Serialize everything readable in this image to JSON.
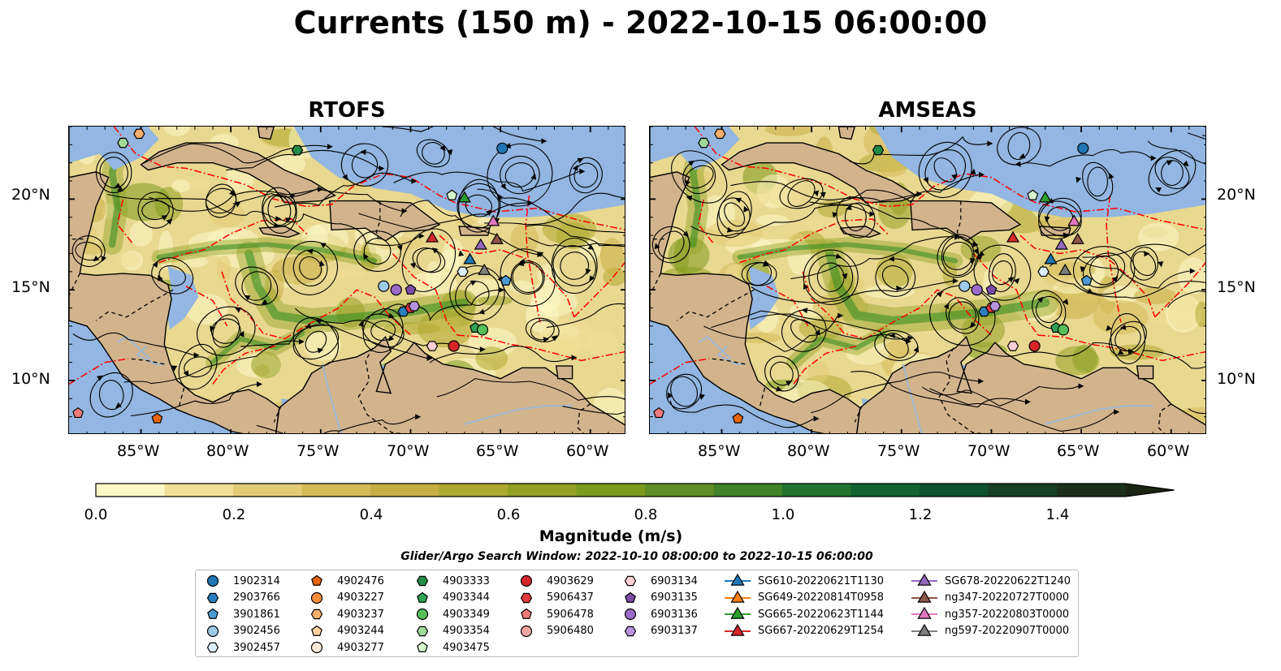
{
  "title": "Currents (150 m) - 2022-10-15 06:00:00",
  "panels": [
    {
      "title": "RTOFS"
    },
    {
      "title": "AMSEAS"
    }
  ],
  "axes": {
    "lon_ticks": [
      "85°W",
      "80°W",
      "75°W",
      "70°W",
      "65°W",
      "60°W"
    ],
    "lat_ticks": [
      "20°N",
      "15°N",
      "10°N"
    ]
  },
  "colorbar": {
    "label": "Magnitude (m/s)",
    "ticks": [
      "0.0",
      "0.2",
      "0.4",
      "0.6",
      "0.8",
      "1.0",
      "1.2",
      "1.4"
    ],
    "range": [
      0,
      1.5
    ],
    "extend": "max",
    "colors": [
      "#fdf8c6",
      "#f0df96",
      "#e2cc75",
      "#d4bb58",
      "#c6ae43",
      "#aea930",
      "#93a125",
      "#7b9a1e",
      "#5f8f24",
      "#3f8228",
      "#22732e",
      "#10632e",
      "#0e5130",
      "#173f24",
      "#1a3019",
      "#1c2414"
    ]
  },
  "search_window": "Glider/Argo Search Window: 2022-10-10 08:00:00 to 2022-10-15 06:00:00",
  "legend": {
    "columns": [
      [
        {
          "label": "1902314",
          "marker": "circle",
          "color": "#1f77b4"
        },
        {
          "label": "2903766",
          "marker": "hexagon",
          "color": "#2b7fc0"
        },
        {
          "label": "3901861",
          "marker": "pentagon",
          "color": "#4b9bd6"
        },
        {
          "label": "3902456",
          "marker": "circle",
          "color": "#9ecae9"
        },
        {
          "label": "3902457",
          "marker": "hexagon",
          "color": "#dbeefb"
        }
      ],
      [
        {
          "label": "4902476",
          "marker": "pentagon",
          "color": "#e8650a"
        },
        {
          "label": "4903227",
          "marker": "circle",
          "color": "#fd8d3c"
        },
        {
          "label": "4903237",
          "marker": "hexagon",
          "color": "#fdae6b"
        },
        {
          "label": "4903244",
          "marker": "pentagon",
          "color": "#fdd0a2"
        },
        {
          "label": "4903277",
          "marker": "circle",
          "color": "#feeada"
        }
      ],
      [
        {
          "label": "4903333",
          "marker": "hexagon",
          "color": "#238b45"
        },
        {
          "label": "4903344",
          "marker": "pentagon",
          "color": "#31a354"
        },
        {
          "label": "4903349",
          "marker": "circle",
          "color": "#56c15a"
        },
        {
          "label": "4903354",
          "marker": "hexagon",
          "color": "#a1d99b"
        },
        {
          "label": "4903475",
          "marker": "pentagon",
          "color": "#d9f7cf"
        }
      ],
      [
        {
          "label": "4903629",
          "marker": "circle",
          "color": "#d62728"
        },
        {
          "label": "5906437",
          "marker": "hexagon",
          "color": "#e0393e"
        },
        {
          "label": "5906478",
          "marker": "pentagon",
          "color": "#f07b7b"
        },
        {
          "label": "5906480",
          "marker": "circle",
          "color": "#f4a3a3"
        }
      ],
      [
        {
          "label": "6903134",
          "marker": "hexagon",
          "color": "#fbd0d4"
        },
        {
          "label": "6903135",
          "marker": "pentagon",
          "color": "#7b4ba8"
        },
        {
          "label": "6903136",
          "marker": "circle",
          "color": "#9a6bc9"
        },
        {
          "label": "6903137",
          "marker": "hexagon",
          "color": "#b792de"
        }
      ],
      [
        {
          "label": "SG610-20220621T1130",
          "marker": "triangle",
          "color": "#1f77b4"
        },
        {
          "label": "SG649-20220814T0958",
          "marker": "triangle",
          "color": "#ff7f0e"
        },
        {
          "label": "SG665-20220623T1144",
          "marker": "triangle",
          "color": "#2ca02c"
        },
        {
          "label": "SG667-20220629T1254",
          "marker": "triangle",
          "color": "#d62728"
        }
      ],
      [
        {
          "label": "SG678-20220622T1240",
          "marker": "triangle",
          "color": "#9467bd"
        },
        {
          "label": "ng347-20220727T0000",
          "marker": "triangle",
          "color": "#8c564b"
        },
        {
          "label": "ng357-20220803T0000",
          "marker": "triangle",
          "color": "#e377c2"
        },
        {
          "label": "ng597-20220907T0000",
          "marker": "triangle",
          "color": "#7f7f7f"
        }
      ]
    ]
  },
  "map": {
    "extent": {
      "lon": [
        -89,
        -58
      ],
      "lat": [
        7,
        24
      ]
    },
    "colors": {
      "land": "#d2b48c",
      "ocean_bg": "#e8d890",
      "deep_water": "#93b6e2",
      "rivers": "#9fb7d4",
      "borders": "#000000",
      "eez": "#ff0000",
      "streamlines": "#000000",
      "stagnant": "#fdf8c6",
      "fast_jet": "#2e8b1e"
    },
    "observations": [
      {
        "label": "1902314",
        "lon": -64.9,
        "lat": 22.8
      },
      {
        "label": "2903766",
        "lon": -70.4,
        "lat": 13.8
      },
      {
        "label": "3901861",
        "lon": -64.7,
        "lat": 15.5
      },
      {
        "label": "3902456",
        "lon": -71.5,
        "lat": 15.2
      },
      {
        "label": "3902457",
        "lon": -67.1,
        "lat": 16.0
      },
      {
        "label": "4902476",
        "lon": -84.1,
        "lat": 7.9
      },
      {
        "label": "4903237",
        "lon": -85.1,
        "lat": 23.6
      },
      {
        "label": "4903333",
        "lon": -76.3,
        "lat": 22.7
      },
      {
        "label": "4903344",
        "lon": -66.4,
        "lat": 12.9
      },
      {
        "label": "4903349",
        "lon": -66.0,
        "lat": 12.8
      },
      {
        "label": "4903354",
        "lon": -86.0,
        "lat": 23.1
      },
      {
        "label": "4903475",
        "lon": -67.7,
        "lat": 20.2
      },
      {
        "label": "4903629",
        "lon": -67.6,
        "lat": 11.9
      },
      {
        "label": "5906437",
        "lon": -70.0,
        "lat": 14.0
      },
      {
        "label": "5906478",
        "lon": -88.5,
        "lat": 8.2
      },
      {
        "label": "6903134",
        "lon": -68.8,
        "lat": 11.9
      },
      {
        "label": "6903135",
        "lon": -70.0,
        "lat": 15.0
      },
      {
        "label": "6903136",
        "lon": -70.8,
        "lat": 15.0
      },
      {
        "label": "6903137",
        "lon": -69.8,
        "lat": 14.1
      },
      {
        "label": "SG610-20220621T1130",
        "lon": -66.7,
        "lat": 16.7
      },
      {
        "label": "SG665-20220623T1144",
        "lon": -67.0,
        "lat": 20.1
      },
      {
        "label": "SG667-20220629T1254",
        "lon": -68.8,
        "lat": 17.9
      },
      {
        "label": "SG678-20220622T1240",
        "lon": -66.1,
        "lat": 17.5
      },
      {
        "label": "ng347-20220727T0000",
        "lon": -65.2,
        "lat": 17.8
      },
      {
        "label": "ng357-20220803T0000",
        "lon": -65.4,
        "lat": 18.8
      },
      {
        "label": "ng597-20220907T0000",
        "lon": -65.9,
        "lat": 16.1
      }
    ]
  }
}
